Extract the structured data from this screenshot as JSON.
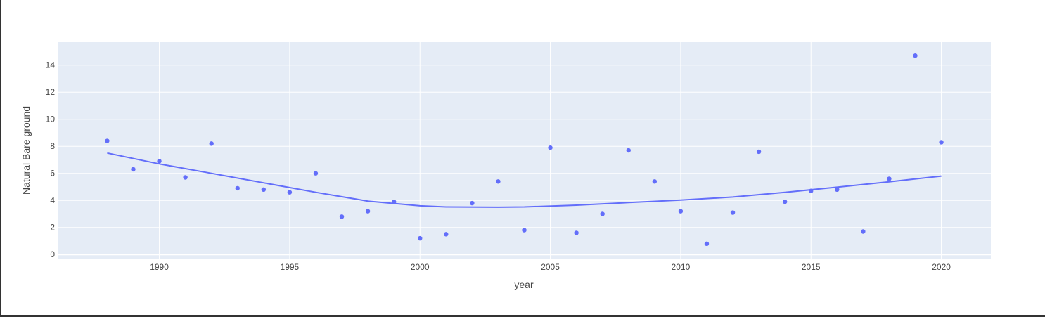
{
  "chart_data": {
    "type": "scatter",
    "title": "",
    "xlabel": "year",
    "ylabel": "Natural Bare ground",
    "xlim": [
      1986.1,
      2021.9
    ],
    "ylim": [
      -0.3,
      15.7
    ],
    "xticks": [
      1990,
      1995,
      2000,
      2005,
      2010,
      2015,
      2020
    ],
    "yticks": [
      0,
      2,
      4,
      6,
      8,
      10,
      12,
      14
    ],
    "grid": true,
    "legend": "none",
    "colors": {
      "marker": "#636efa",
      "plot_bg": "#e5ecf6",
      "grid": "#ffffff",
      "text": "#444444"
    },
    "series": [
      {
        "mode": "markers",
        "x": [
          1988,
          1989,
          1990,
          1991,
          1992,
          1993,
          1994,
          1995,
          1996,
          1997,
          1998,
          1999,
          2000,
          2001,
          2002,
          2003,
          2004,
          2005,
          2006,
          2007,
          2008,
          2009,
          2010,
          2011,
          2012,
          2013,
          2014,
          2015,
          2016,
          2017,
          2018,
          2019,
          2020
        ],
        "y": [
          8.4,
          6.3,
          6.9,
          5.7,
          8.2,
          4.9,
          4.8,
          4.6,
          6.0,
          2.8,
          3.2,
          3.9,
          1.2,
          1.5,
          3.8,
          5.4,
          1.8,
          7.9,
          1.6,
          3.0,
          7.7,
          5.4,
          3.2,
          0.8,
          3.1,
          7.6,
          3.9,
          4.7,
          4.8,
          1.7,
          5.6,
          14.7,
          8.3
        ]
      },
      {
        "mode": "lines",
        "x": [
          1988,
          1990,
          1992,
          1994,
          1996,
          1998,
          2000,
          2001,
          2003,
          2004,
          2006,
          2008,
          2010,
          2012,
          2014,
          2016,
          2018,
          2020
        ],
        "y": [
          7.5,
          6.7,
          6.0,
          5.3,
          4.6,
          3.95,
          3.6,
          3.52,
          3.5,
          3.52,
          3.65,
          3.84,
          4.02,
          4.25,
          4.6,
          4.98,
          5.38,
          5.8
        ]
      }
    ]
  }
}
